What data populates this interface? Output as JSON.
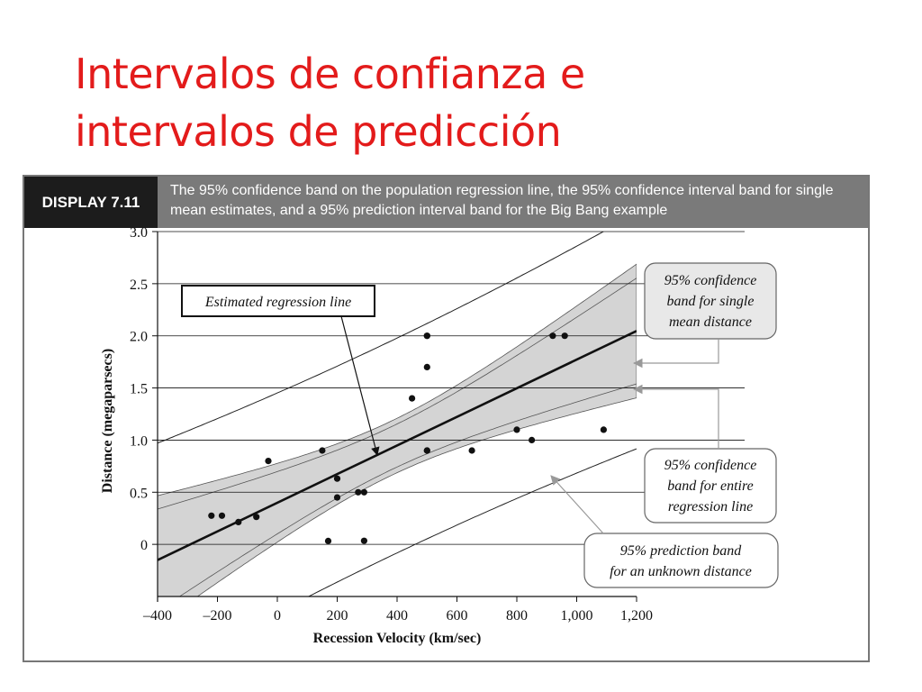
{
  "slide": {
    "title_lines": [
      "Intervalos de confianza e",
      "intervalos de predicción"
    ]
  },
  "figure": {
    "display_label": "DISPLAY 7.11",
    "caption": "The 95% confidence band on the population regression line, the 95% confidence interval band for single mean estimates, and a 95% prediction interval band for the Big Bang example"
  },
  "colors": {
    "title": "#e31b1b",
    "band_fill": "#d4d4d4",
    "points": "#111111"
  },
  "chart_data": {
    "type": "scatter",
    "xlabel": "Recession Velocity (km/sec)",
    "ylabel": "Distance (megaparsecs)",
    "xlim": [
      -400,
      1200
    ],
    "ylim": [
      -0.5,
      3.0
    ],
    "x_ticks": [
      -400,
      -200,
      0,
      200,
      400,
      600,
      800,
      1000,
      1200
    ],
    "x_tick_labels": [
      "–400",
      "–200",
      "0",
      "200",
      "400",
      "600",
      "800",
      "1,000",
      "1,200"
    ],
    "y_ticks": [
      0,
      0.5,
      1.0,
      1.5,
      2.0,
      2.5,
      3.0
    ],
    "y_tick_labels": [
      "0",
      "0.5",
      "1.0",
      "1.5",
      "2.0",
      "2.5",
      "3.0"
    ],
    "points": {
      "x": [
        170,
        290,
        -130,
        -70,
        -185,
        -220,
        200,
        290,
        270,
        200,
        -30,
        650,
        150,
        500,
        500,
        850,
        800,
        1090,
        450,
        500,
        500,
        960,
        500,
        920
      ],
      "y": [
        0.032,
        0.034,
        0.214,
        0.263,
        0.275,
        0.275,
        0.45,
        0.5,
        0.5,
        0.63,
        0.8,
        0.9,
        0.9,
        0.9,
        0.9,
        1.0,
        1.1,
        1.1,
        1.4,
        1.7,
        2.0,
        2.0,
        2.0,
        2.0
      ]
    },
    "regression_line": {
      "intercept": 0.399,
      "slope": 0.001373
    },
    "annotations": {
      "estimated_line": "Estimated regression line",
      "confidence_mean": [
        "95% confidence",
        "band for single",
        "mean distance"
      ],
      "confidence_line": [
        "95% confidence",
        "band for entire",
        "regression line"
      ],
      "prediction": [
        "95% prediction band",
        "for an unknown distance"
      ]
    }
  }
}
